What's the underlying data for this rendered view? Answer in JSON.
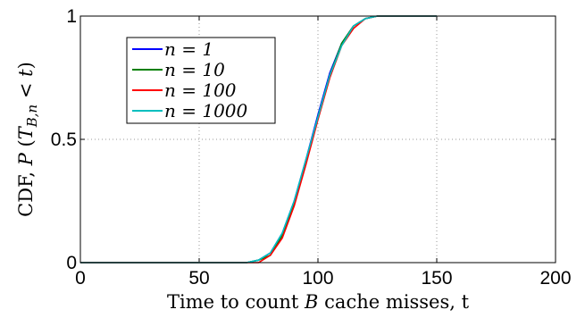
{
  "chart_data": {
    "type": "line",
    "xlabel": "Time to count B cache misses, t",
    "ylabel": "CDF, P (T_{B,n} < t)",
    "xlim": [
      0,
      200
    ],
    "ylim": [
      0,
      1
    ],
    "xticks": [
      "0",
      "50",
      "100",
      "150",
      "200"
    ],
    "yticks": [
      "0",
      "0.5",
      "1"
    ],
    "grid": true,
    "legend_position": "top-left",
    "series": [
      {
        "name": "n = 1",
        "color": "#0000ff",
        "x": [
          0,
          70,
          75,
          80,
          85,
          90,
          95,
          100,
          105,
          110,
          115,
          120,
          125,
          130,
          140,
          150
        ],
        "y": [
          0,
          0.0,
          0.01,
          0.04,
          0.12,
          0.25,
          0.42,
          0.6,
          0.77,
          0.89,
          0.96,
          0.99,
          1.0,
          1.0,
          1.0,
          1.0
        ]
      },
      {
        "name": "n = 10",
        "color": "#007f00",
        "x": [
          0,
          70,
          75,
          80,
          85,
          90,
          95,
          100,
          105,
          110,
          115,
          120,
          125,
          130,
          140,
          150
        ],
        "y": [
          0,
          0.0,
          0.01,
          0.03,
          0.11,
          0.24,
          0.41,
          0.59,
          0.76,
          0.89,
          0.96,
          0.99,
          1.0,
          1.0,
          1.0,
          1.0
        ]
      },
      {
        "name": "n = 100",
        "color": "#ff0000",
        "x": [
          0,
          70,
          75,
          80,
          85,
          90,
          95,
          100,
          105,
          110,
          115,
          120,
          125,
          130,
          140,
          150
        ],
        "y": [
          0,
          0.0,
          0.0,
          0.03,
          0.1,
          0.23,
          0.4,
          0.58,
          0.75,
          0.88,
          0.95,
          0.99,
          1.0,
          1.0,
          1.0,
          1.0
        ]
      },
      {
        "name": "n = 1000",
        "color": "#00bfbf",
        "x": [
          0,
          70,
          75,
          80,
          85,
          90,
          95,
          100,
          105,
          110,
          115,
          120,
          125,
          130,
          140,
          150
        ],
        "y": [
          0,
          0.0,
          0.01,
          0.04,
          0.12,
          0.25,
          0.42,
          0.59,
          0.76,
          0.88,
          0.96,
          0.99,
          1.0,
          1.0,
          1.0,
          1.0
        ]
      }
    ]
  }
}
